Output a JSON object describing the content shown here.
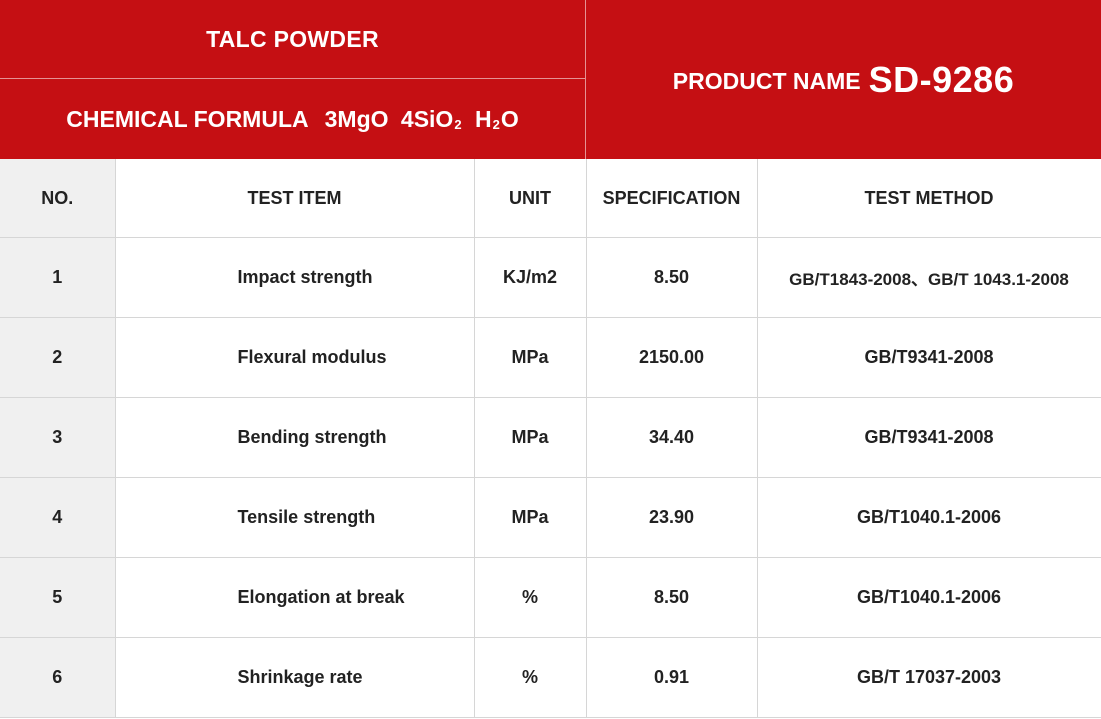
{
  "header": {
    "product_type": "TALC POWDER",
    "formula_label": "CHEMICAL FORMULA",
    "formula_parts": [
      "3MgO",
      "4SiO",
      "2",
      "H",
      "2",
      "O"
    ],
    "product_name_label": "PRODUCT NAME",
    "product_name_value": "SD-9286",
    "colors": {
      "header_bg": "#c50f13",
      "header_text": "#ffffff",
      "no_column_bg": "#f0f0f0",
      "grid_line": "#d6d6d6"
    }
  },
  "table": {
    "columns": [
      "NO.",
      "TEST ITEM",
      "UNIT",
      "SPECIFICATION",
      "TEST METHOD"
    ],
    "rows": [
      {
        "no": "1",
        "item": "Impact strength",
        "unit": "KJ/m2",
        "spec": "8.50",
        "method": "GB/T1843-2008、GB/T 1043.1-2008"
      },
      {
        "no": "2",
        "item": "Flexural modulus",
        "unit": "MPa",
        "spec": "2150.00",
        "method": "GB/T9341-2008"
      },
      {
        "no": "3",
        "item": "Bending strength",
        "unit": "MPa",
        "spec": "34.40",
        "method": "GB/T9341-2008"
      },
      {
        "no": "4",
        "item": "Tensile strength",
        "unit": "MPa",
        "spec": "23.90",
        "method": "GB/T1040.1-2006"
      },
      {
        "no": "5",
        "item": "Elongation at break",
        "unit": "%",
        "spec": "8.50",
        "method": "GB/T1040.1-2006"
      },
      {
        "no": "6",
        "item": "Shrinkage rate",
        "unit": "%",
        "spec": "0.91",
        "method": "GB/T 17037-2003"
      }
    ]
  }
}
